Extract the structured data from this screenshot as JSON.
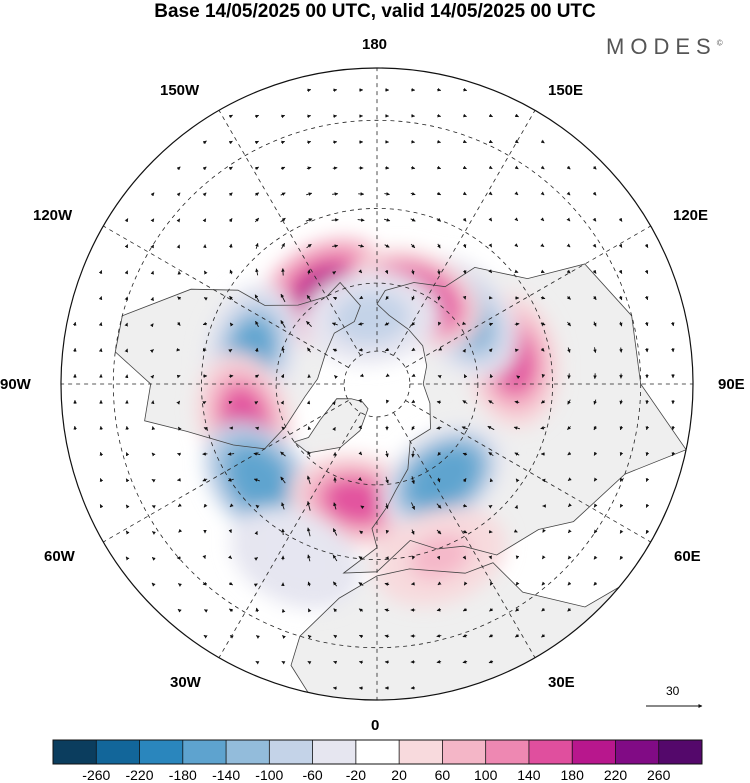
{
  "header": {
    "title": "Base 14/05/2025 00 UTC, valid 14/05/2025 00 UTC",
    "brand": "MODES",
    "brand_mark": "©"
  },
  "map": {
    "projection": "north-polar-stereographic",
    "longitude_labels": {
      "top": "180",
      "bottom": "0",
      "left": "90W",
      "right": "90E",
      "upper_left_1": "150W",
      "upper_left_2": "120W",
      "upper_right_1": "150E",
      "upper_right_2": "120E",
      "lower_left_1": "60W",
      "lower_left_2": "30W",
      "lower_right_1": "60E",
      "lower_right_2": "30E"
    },
    "field": "geopotential height anomaly (shaded) with wind vectors",
    "anomaly_centers": [
      {
        "lon": -150,
        "lat": 58,
        "value": 180
      },
      {
        "lon": -105,
        "lat": 52,
        "value": -160
      },
      {
        "lon": -75,
        "lat": 50,
        "value": 140
      },
      {
        "lon": -50,
        "lat": 46,
        "value": -180
      },
      {
        "lon": -10,
        "lat": 55,
        "value": 140
      },
      {
        "lon": 35,
        "lat": 56,
        "value": -170
      },
      {
        "lon": 100,
        "lat": 50,
        "value": 140
      },
      {
        "lon": 128,
        "lat": 58,
        "value": -160
      },
      {
        "lon": 155,
        "lat": 62,
        "value": 170
      },
      {
        "lon": -175,
        "lat": 70,
        "value": -100
      },
      {
        "lon": 20,
        "lat": 38,
        "value": 60
      },
      {
        "lon": -25,
        "lat": 36,
        "value": -60
      }
    ],
    "colors": {
      "land": "#efefef",
      "coast": "#444444",
      "grid": "#222222",
      "vector": "#111111"
    }
  },
  "reference_vector": {
    "label": "30"
  },
  "colorbar": {
    "levels": [
      "-260",
      "-220",
      "-180",
      "-140",
      "-100",
      "-60",
      "-20",
      "20",
      "60",
      "100",
      "140",
      "180",
      "220",
      "260"
    ],
    "colors": [
      "#0b3d5e",
      "#12669a",
      "#2a86bd",
      "#5ea3cf",
      "#93bcdb",
      "#c4d3e8",
      "#e6e6f0",
      "#ffffff",
      "#f8dadd",
      "#f4b6c7",
      "#ee88b2",
      "#e04f9e",
      "#b8178d",
      "#810b85",
      "#54086b"
    ]
  }
}
